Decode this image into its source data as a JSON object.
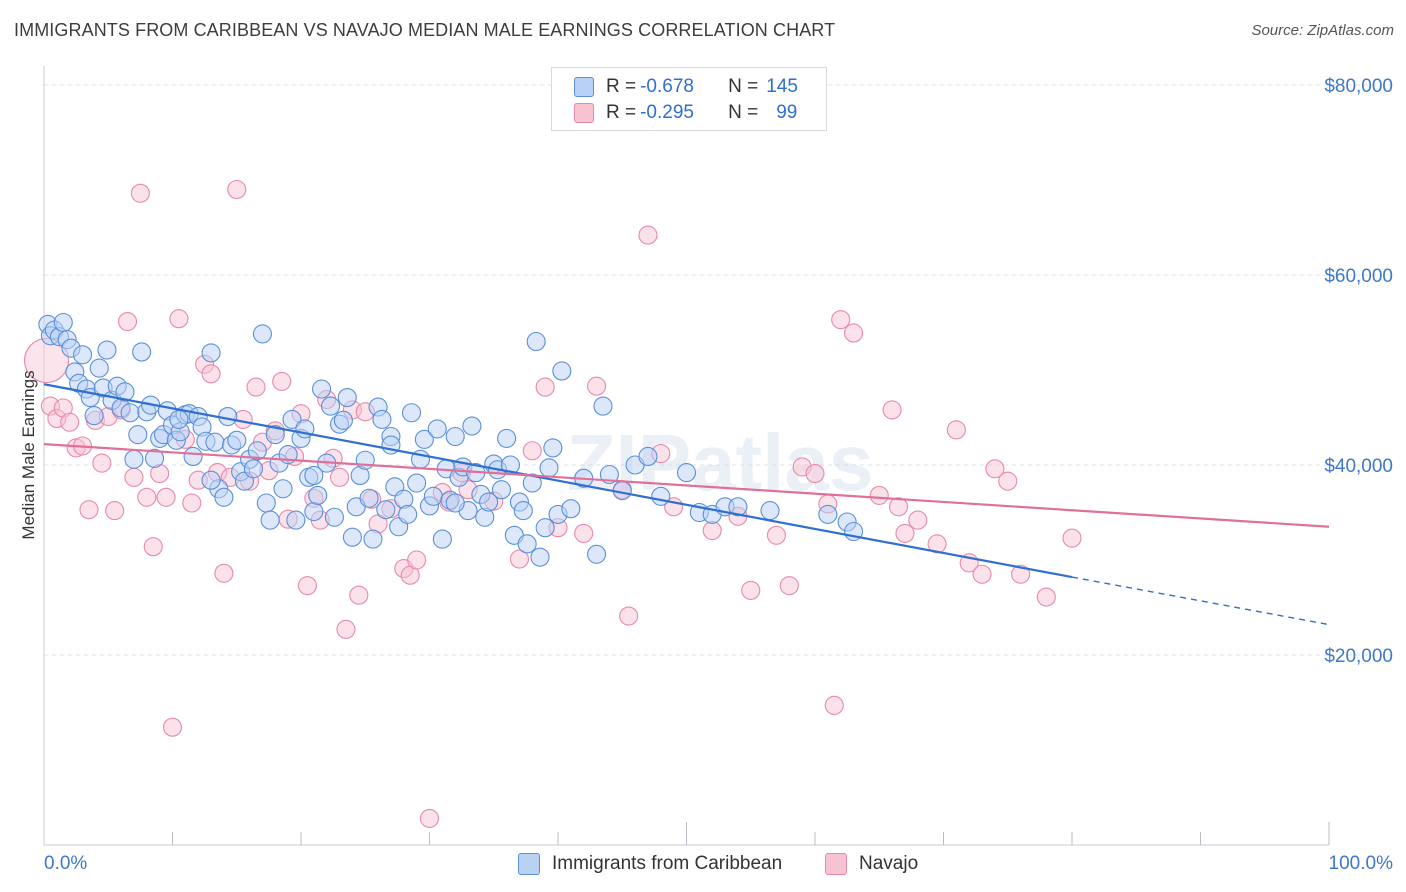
{
  "header": {
    "title": "IMMIGRANTS FROM CARIBBEAN VS NAVAJO MEDIAN MALE EARNINGS CORRELATION CHART",
    "source": "Source: ZipAtlas.com"
  },
  "legend": {
    "rows": [
      {
        "r_label": "R = ",
        "r_value": "-0.678",
        "n_label": "N = ",
        "n_value": "145"
      },
      {
        "r_label": "R = ",
        "r_value": "-0.295",
        "n_label": "N = ",
        "n_value": "99"
      }
    ]
  },
  "watermark": "ZIPatlas",
  "colors": {
    "blue_fill": "#b9d1f5",
    "blue_stroke": "#5b8fd8",
    "blue_line": "#2f6fd1",
    "pink_fill": "#f7c3d3",
    "pink_stroke": "#e68aa8",
    "pink_line": "#e0709a",
    "grid": "#dde3ea",
    "tick_label": "#3f78c9"
  },
  "chart_data": {
    "type": "scatter",
    "title": "IMMIGRANTS FROM CARIBBEAN VS NAVAJO MEDIAN MALE EARNINGS CORRELATION CHART",
    "xlabel": "",
    "ylabel": "Median Male Earnings",
    "xlim": [
      0,
      100
    ],
    "ylim": [
      0,
      82000
    ],
    "x_tick_labels": [
      "0.0%",
      "100.0%"
    ],
    "y_ticks": [
      20000,
      40000,
      60000,
      80000
    ],
    "y_tick_labels": [
      "$20,000",
      "$40,000",
      "$60,000",
      "$80,000"
    ],
    "grid": true,
    "legend_position": "top-center",
    "series": [
      {
        "name": "Immigrants from Caribbean",
        "r": -0.678,
        "n": 145,
        "trend": {
          "x0": 0,
          "y0": 48500,
          "x1": 80,
          "y1": 28200,
          "dash_to_x": 100,
          "dash_to_y": 23200
        },
        "points": [
          [
            0.3,
            54800
          ],
          [
            0.5,
            53600
          ],
          [
            0.8,
            54200
          ],
          [
            1.2,
            53500
          ],
          [
            1.5,
            55000
          ],
          [
            1.8,
            53200
          ],
          [
            2.1,
            52300
          ],
          [
            2.4,
            49800
          ],
          [
            2.7,
            48600
          ],
          [
            3.0,
            51600
          ],
          [
            3.3,
            48000
          ],
          [
            3.6,
            47100
          ],
          [
            3.9,
            45200
          ],
          [
            4.3,
            50200
          ],
          [
            4.6,
            48100
          ],
          [
            4.9,
            52100
          ],
          [
            5.3,
            46800
          ],
          [
            5.7,
            48300
          ],
          [
            6.0,
            46000
          ],
          [
            6.3,
            47700
          ],
          [
            6.7,
            45500
          ],
          [
            7.0,
            40600
          ],
          [
            7.3,
            43200
          ],
          [
            7.6,
            51900
          ],
          [
            8.0,
            45600
          ],
          [
            8.3,
            46300
          ],
          [
            8.6,
            40700
          ],
          [
            9.0,
            42800
          ],
          [
            9.3,
            43200
          ],
          [
            9.6,
            45700
          ],
          [
            10.0,
            44200
          ],
          [
            10.3,
            42600
          ],
          [
            10.6,
            43500
          ],
          [
            11.0,
            45300
          ],
          [
            11.3,
            45400
          ],
          [
            11.6,
            40900
          ],
          [
            12.0,
            45100
          ],
          [
            12.3,
            44000
          ],
          [
            12.6,
            42500
          ],
          [
            13.0,
            51800
          ],
          [
            13.3,
            42400
          ],
          [
            13.6,
            37500
          ],
          [
            14.0,
            36600
          ],
          [
            14.3,
            45100
          ],
          [
            14.6,
            42100
          ],
          [
            15.0,
            42600
          ],
          [
            15.3,
            39300
          ],
          [
            15.6,
            38300
          ],
          [
            16.0,
            40600
          ],
          [
            16.3,
            39600
          ],
          [
            16.6,
            41500
          ],
          [
            17.0,
            53800
          ],
          [
            17.3,
            36000
          ],
          [
            17.6,
            34200
          ],
          [
            18.0,
            43200
          ],
          [
            18.3,
            40200
          ],
          [
            18.6,
            37500
          ],
          [
            19.0,
            41100
          ],
          [
            19.3,
            44800
          ],
          [
            19.6,
            34200
          ],
          [
            20.0,
            42800
          ],
          [
            20.3,
            43800
          ],
          [
            20.6,
            38700
          ],
          [
            21.0,
            35100
          ],
          [
            21.3,
            36800
          ],
          [
            21.6,
            48000
          ],
          [
            22.0,
            40200
          ],
          [
            22.3,
            46200
          ],
          [
            22.6,
            34500
          ],
          [
            23.0,
            44300
          ],
          [
            23.3,
            44700
          ],
          [
            23.6,
            47100
          ],
          [
            24.0,
            32400
          ],
          [
            24.3,
            35600
          ],
          [
            24.6,
            38900
          ],
          [
            25.0,
            40500
          ],
          [
            25.3,
            36500
          ],
          [
            25.6,
            32200
          ],
          [
            26.0,
            46100
          ],
          [
            26.3,
            44800
          ],
          [
            26.6,
            35300
          ],
          [
            27.0,
            43000
          ],
          [
            27.3,
            37700
          ],
          [
            27.6,
            33500
          ],
          [
            28.0,
            36400
          ],
          [
            28.3,
            34800
          ],
          [
            28.6,
            45500
          ],
          [
            29.0,
            38100
          ],
          [
            29.3,
            40600
          ],
          [
            29.6,
            42700
          ],
          [
            30.0,
            35700
          ],
          [
            30.3,
            36700
          ],
          [
            30.6,
            43800
          ],
          [
            31.0,
            32200
          ],
          [
            31.3,
            39600
          ],
          [
            31.6,
            36300
          ],
          [
            32.0,
            43000
          ],
          [
            32.3,
            38700
          ],
          [
            32.6,
            39800
          ],
          [
            33.0,
            35200
          ],
          [
            33.3,
            44100
          ],
          [
            33.6,
            39200
          ],
          [
            34.0,
            36900
          ],
          [
            34.3,
            34500
          ],
          [
            34.6,
            36100
          ],
          [
            35.0,
            40100
          ],
          [
            35.3,
            39500
          ],
          [
            35.6,
            37400
          ],
          [
            36.0,
            42800
          ],
          [
            36.3,
            40000
          ],
          [
            36.6,
            32600
          ],
          [
            37.0,
            36100
          ],
          [
            37.3,
            35200
          ],
          [
            37.6,
            31700
          ],
          [
            38.0,
            38100
          ],
          [
            38.3,
            53000
          ],
          [
            38.6,
            30300
          ],
          [
            39.0,
            33400
          ],
          [
            39.3,
            39700
          ],
          [
            39.6,
            41800
          ],
          [
            40.0,
            34800
          ],
          [
            40.3,
            49900
          ],
          [
            41.0,
            35400
          ],
          [
            42.0,
            38600
          ],
          [
            43.0,
            30600
          ],
          [
            43.5,
            46200
          ],
          [
            44.0,
            39000
          ],
          [
            45.0,
            37300
          ],
          [
            46.0,
            40000
          ],
          [
            47.0,
            40900
          ],
          [
            48.0,
            36700
          ],
          [
            50.0,
            39200
          ],
          [
            51.0,
            35000
          ],
          [
            52.0,
            34800
          ],
          [
            53.0,
            35600
          ],
          [
            54.0,
            35600
          ],
          [
            56.5,
            35200
          ],
          [
            61.0,
            34800
          ],
          [
            62.5,
            34000
          ],
          [
            63.0,
            33000
          ],
          [
            10.5,
            44800
          ],
          [
            13.0,
            38400
          ],
          [
            21.0,
            38900
          ],
          [
            27.0,
            42100
          ],
          [
            32.0,
            36000
          ]
        ]
      },
      {
        "name": "Navajo",
        "r": -0.295,
        "n": 99,
        "trend": {
          "x0": 0,
          "y0": 42200,
          "x1": 100,
          "y1": 33500
        },
        "points": [
          [
            0.2,
            51000
          ],
          [
            0.5,
            46200
          ],
          [
            1.0,
            44900
          ],
          [
            1.5,
            46000
          ],
          [
            2.0,
            44500
          ],
          [
            2.5,
            41800
          ],
          [
            3.0,
            42000
          ],
          [
            3.5,
            35300
          ],
          [
            4.0,
            44700
          ],
          [
            4.5,
            40200
          ],
          [
            5.0,
            45100
          ],
          [
            5.5,
            35200
          ],
          [
            6.0,
            45800
          ],
          [
            6.5,
            55100
          ],
          [
            7.0,
            38700
          ],
          [
            7.5,
            68600
          ],
          [
            8.0,
            36600
          ],
          [
            8.5,
            31400
          ],
          [
            9.0,
            39100
          ],
          [
            9.5,
            36600
          ],
          [
            10.0,
            12400
          ],
          [
            10.5,
            55400
          ],
          [
            11.0,
            42700
          ],
          [
            11.5,
            36000
          ],
          [
            12.0,
            38400
          ],
          [
            12.5,
            50600
          ],
          [
            13.0,
            49600
          ],
          [
            13.5,
            39200
          ],
          [
            14.0,
            28600
          ],
          [
            14.5,
            38700
          ],
          [
            15.0,
            69000
          ],
          [
            15.5,
            44800
          ],
          [
            16.0,
            38300
          ],
          [
            16.5,
            48200
          ],
          [
            17.0,
            42400
          ],
          [
            17.5,
            39400
          ],
          [
            18.0,
            43600
          ],
          [
            18.5,
            48800
          ],
          [
            19.0,
            34300
          ],
          [
            19.5,
            40900
          ],
          [
            20.0,
            45400
          ],
          [
            20.5,
            27300
          ],
          [
            21.0,
            36500
          ],
          [
            21.5,
            34200
          ],
          [
            22.0,
            46900
          ],
          [
            22.5,
            40700
          ],
          [
            23.0,
            38700
          ],
          [
            23.5,
            22700
          ],
          [
            24.0,
            45800
          ],
          [
            24.5,
            26300
          ],
          [
            25.0,
            45600
          ],
          [
            25.5,
            36400
          ],
          [
            26.0,
            33800
          ],
          [
            27.0,
            35400
          ],
          [
            28.0,
            29100
          ],
          [
            28.5,
            28400
          ],
          [
            29.0,
            30000
          ],
          [
            30.0,
            2800
          ],
          [
            31.0,
            37100
          ],
          [
            31.5,
            36100
          ],
          [
            32.5,
            39200
          ],
          [
            33.0,
            37400
          ],
          [
            35.0,
            36200
          ],
          [
            37.0,
            30100
          ],
          [
            38.0,
            41500
          ],
          [
            39.0,
            48200
          ],
          [
            40.0,
            33400
          ],
          [
            42.0,
            32800
          ],
          [
            43.0,
            48300
          ],
          [
            45.0,
            37400
          ],
          [
            45.5,
            24100
          ],
          [
            47.0,
            64200
          ],
          [
            48.0,
            41200
          ],
          [
            49.0,
            35600
          ],
          [
            52.0,
            33100
          ],
          [
            54.0,
            34600
          ],
          [
            55.0,
            26800
          ],
          [
            57.0,
            32600
          ],
          [
            58.0,
            27300
          ],
          [
            59.0,
            39800
          ],
          [
            60.0,
            39100
          ],
          [
            61.0,
            35900
          ],
          [
            61.5,
            14700
          ],
          [
            62.0,
            55300
          ],
          [
            63.0,
            53900
          ],
          [
            65.0,
            36800
          ],
          [
            66.0,
            45800
          ],
          [
            66.5,
            35600
          ],
          [
            67.0,
            32800
          ],
          [
            68.0,
            34200
          ],
          [
            69.5,
            31700
          ],
          [
            71.0,
            43700
          ],
          [
            72.0,
            29700
          ],
          [
            73.0,
            28500
          ],
          [
            74.0,
            39600
          ],
          [
            75.0,
            38300
          ],
          [
            76.0,
            28500
          ],
          [
            78.0,
            26100
          ],
          [
            80.0,
            32300
          ]
        ]
      }
    ]
  },
  "bottom_legend": {
    "items": [
      {
        "label": "Immigrants from Caribbean"
      },
      {
        "label": "Navajo"
      }
    ]
  }
}
